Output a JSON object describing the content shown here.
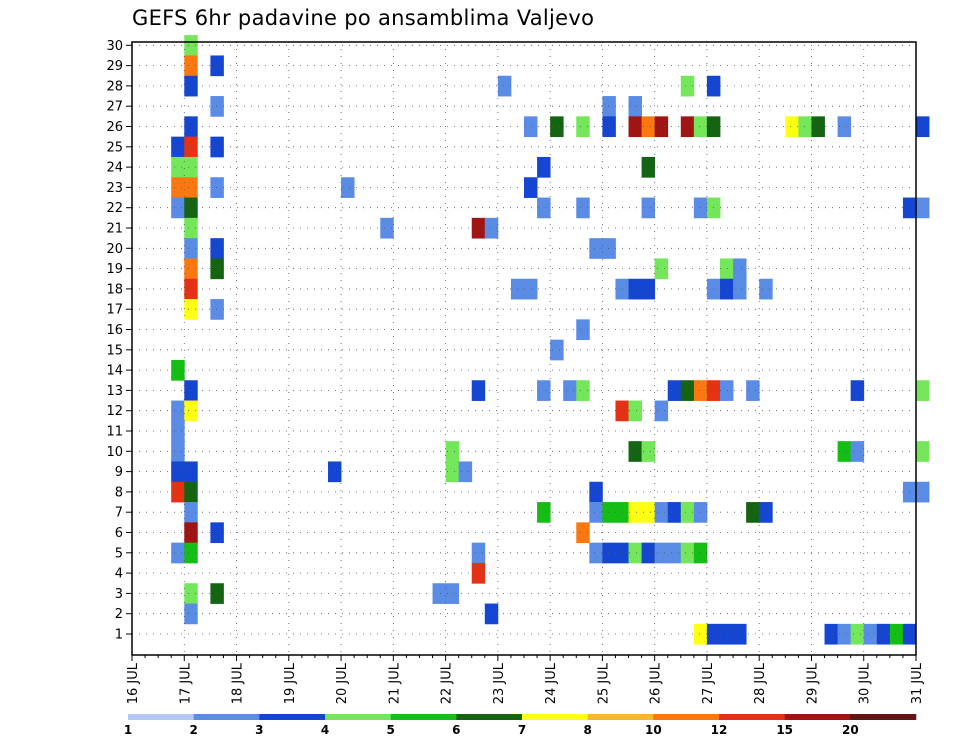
{
  "chart_data": {
    "type": "heatmap",
    "title": "GEFS 6hr padavine po ansamblima Valjevo",
    "x_tick_labels": [
      "16 JUL",
      "17 JUL",
      "18 JUL",
      "19 JUL",
      "20 JUL",
      "21 JUL",
      "22 JUL",
      "23 JUL",
      "24 JUL",
      "25 JUL",
      "26 JUL",
      "27 JUL",
      "28 JUL",
      "29 JUL",
      "30 JUL",
      "31 JUL"
    ],
    "x_range_days": [
      16,
      31
    ],
    "x_step": "6h",
    "y_tick_labels": [
      "1",
      "2",
      "3",
      "4",
      "5",
      "6",
      "7",
      "8",
      "9",
      "10",
      "11",
      "12",
      "13",
      "14",
      "15",
      "16",
      "17",
      "18",
      "19",
      "20",
      "21",
      "22",
      "23",
      "24",
      "25",
      "26",
      "27",
      "28",
      "29",
      "30"
    ],
    "grid": true,
    "colorbar": {
      "labels": [
        "1",
        "2",
        "3",
        "4",
        "5",
        "6",
        "7",
        "8",
        "10",
        "12",
        "15",
        "20"
      ],
      "colors": [
        "#b4c8f5",
        "#5a8ce6",
        "#1446d2",
        "#73e65a",
        "#14be14",
        "#146414",
        "#ffff14",
        "#ffb432",
        "#fa780f",
        "#e63214",
        "#a01414",
        "#641414"
      ]
    },
    "cells": [
      [
        30,
        1,
        3
      ],
      [
        29,
        1,
        8
      ],
      [
        29,
        1.5,
        2
      ],
      [
        28,
        1,
        2
      ],
      [
        28,
        7,
        1
      ],
      [
        28,
        10.5,
        3
      ],
      [
        28,
        11,
        2
      ],
      [
        27,
        1.5,
        1
      ],
      [
        27,
        9,
        1
      ],
      [
        27,
        9.5,
        1
      ],
      [
        26,
        1,
        2
      ],
      [
        26,
        7.5,
        1
      ],
      [
        26,
        8,
        5
      ],
      [
        26,
        8.5,
        3
      ],
      [
        26,
        9,
        2
      ],
      [
        26,
        9.5,
        10
      ],
      [
        26,
        9.75,
        8
      ],
      [
        26,
        10,
        10
      ],
      [
        26,
        10.5,
        10
      ],
      [
        26,
        10.75,
        3
      ],
      [
        26,
        11,
        5
      ],
      [
        26,
        12.5,
        6
      ],
      [
        26,
        12.75,
        3
      ],
      [
        26,
        13,
        5
      ],
      [
        26,
        13.5,
        1
      ],
      [
        26,
        15,
        2
      ],
      [
        25,
        0.75,
        2
      ],
      [
        25,
        1,
        9
      ],
      [
        25,
        1.5,
        2
      ],
      [
        24,
        0.75,
        3
      ],
      [
        24,
        1,
        3
      ],
      [
        24,
        7.75,
        2
      ],
      [
        24,
        9.75,
        5
      ],
      [
        23,
        0.75,
        8
      ],
      [
        23,
        1,
        8
      ],
      [
        23,
        1.5,
        1
      ],
      [
        23,
        4,
        1
      ],
      [
        23,
        7.5,
        2
      ],
      [
        22,
        0.75,
        1
      ],
      [
        22,
        1,
        5
      ],
      [
        22,
        7.75,
        1
      ],
      [
        22,
        8.5,
        1
      ],
      [
        22,
        9.75,
        1
      ],
      [
        22,
        10.75,
        1
      ],
      [
        22,
        11,
        3
      ],
      [
        22,
        14.75,
        2
      ],
      [
        22,
        15,
        1
      ],
      [
        21,
        1,
        3
      ],
      [
        21,
        4.75,
        1
      ],
      [
        21,
        6.5,
        10
      ],
      [
        21,
        6.75,
        1
      ],
      [
        20,
        1,
        1
      ],
      [
        20,
        1.5,
        2
      ],
      [
        20,
        8.75,
        1
      ],
      [
        20,
        9,
        1
      ],
      [
        19,
        1,
        8
      ],
      [
        19,
        1.5,
        5
      ],
      [
        19,
        10,
        3
      ],
      [
        19,
        11.25,
        3
      ],
      [
        19,
        11.5,
        1
      ],
      [
        18,
        1,
        9
      ],
      [
        18,
        7.25,
        1
      ],
      [
        18,
        7.5,
        1
      ],
      [
        18,
        9.25,
        1
      ],
      [
        18,
        9.5,
        2
      ],
      [
        18,
        9.75,
        2
      ],
      [
        18,
        11,
        1
      ],
      [
        18,
        11.25,
        2
      ],
      [
        18,
        11.5,
        1
      ],
      [
        18,
        12,
        1
      ],
      [
        17,
        1,
        6
      ],
      [
        17,
        1.5,
        1
      ],
      [
        16,
        8.5,
        1
      ],
      [
        15,
        8,
        1
      ],
      [
        14,
        0.75,
        4
      ],
      [
        13,
        1,
        2
      ],
      [
        13,
        6.5,
        2
      ],
      [
        13,
        7.75,
        1
      ],
      [
        13,
        8.25,
        1
      ],
      [
        13,
        8.5,
        3
      ],
      [
        13,
        10.25,
        2
      ],
      [
        13,
        10.5,
        5
      ],
      [
        13,
        10.75,
        8
      ],
      [
        13,
        11,
        9
      ],
      [
        13,
        11.25,
        1
      ],
      [
        13,
        11.75,
        1
      ],
      [
        13,
        13.75,
        2
      ],
      [
        13,
        15,
        3
      ],
      [
        12,
        0.75,
        1
      ],
      [
        12,
        1,
        6
      ],
      [
        12,
        9.25,
        9
      ],
      [
        12,
        9.5,
        3
      ],
      [
        12,
        10,
        1
      ],
      [
        11,
        0.75,
        1
      ],
      [
        10,
        0.75,
        1
      ],
      [
        10,
        6,
        3
      ],
      [
        10,
        9.5,
        5
      ],
      [
        10,
        9.75,
        3
      ],
      [
        10,
        13.5,
        4
      ],
      [
        10,
        13.75,
        1
      ],
      [
        10,
        15,
        3
      ],
      [
        9,
        0.75,
        2
      ],
      [
        9,
        1,
        2
      ],
      [
        9,
        3.75,
        2
      ],
      [
        9,
        6,
        3
      ],
      [
        9,
        6.25,
        1
      ],
      [
        8,
        0.75,
        9
      ],
      [
        8,
        1,
        5
      ],
      [
        8,
        8.75,
        2
      ],
      [
        8,
        14.75,
        1
      ],
      [
        8,
        15,
        1
      ],
      [
        7,
        1,
        1
      ],
      [
        7,
        7.75,
        4
      ],
      [
        7,
        8.75,
        1
      ],
      [
        7,
        9,
        4
      ],
      [
        7,
        9.25,
        4
      ],
      [
        7,
        9.5,
        6
      ],
      [
        7,
        9.75,
        6
      ],
      [
        7,
        10,
        1
      ],
      [
        7,
        10.25,
        2
      ],
      [
        7,
        10.5,
        3
      ],
      [
        7,
        10.75,
        1
      ],
      [
        7,
        11.75,
        5
      ],
      [
        7,
        12,
        2
      ],
      [
        6,
        1,
        10
      ],
      [
        6,
        1.5,
        2
      ],
      [
        6,
        8.5,
        8
      ],
      [
        5,
        0.75,
        1
      ],
      [
        5,
        1,
        4
      ],
      [
        5,
        6.5,
        1
      ],
      [
        5,
        8.75,
        1
      ],
      [
        5,
        9,
        2
      ],
      [
        5,
        9.25,
        2
      ],
      [
        5,
        9.5,
        3
      ],
      [
        5,
        9.75,
        2
      ],
      [
        5,
        10,
        1
      ],
      [
        5,
        10.25,
        1
      ],
      [
        5,
        10.5,
        3
      ],
      [
        5,
        10.75,
        4
      ],
      [
        4,
        6.5,
        9
      ],
      [
        3,
        1,
        3
      ],
      [
        3,
        1.5,
        5
      ],
      [
        3,
        5.75,
        1
      ],
      [
        3,
        6,
        1
      ],
      [
        2,
        1,
        1
      ],
      [
        2,
        6.75,
        2
      ],
      [
        1,
        10.75,
        6
      ],
      [
        1,
        11,
        2
      ],
      [
        1,
        11.25,
        2
      ],
      [
        1,
        11.5,
        2
      ],
      [
        1,
        13.25,
        2
      ],
      [
        1,
        13.5,
        1
      ],
      [
        1,
        13.75,
        3
      ],
      [
        1,
        14,
        1
      ],
      [
        1,
        14.25,
        2
      ],
      [
        1,
        14.5,
        4
      ],
      [
        1,
        14.75,
        2
      ]
    ]
  }
}
